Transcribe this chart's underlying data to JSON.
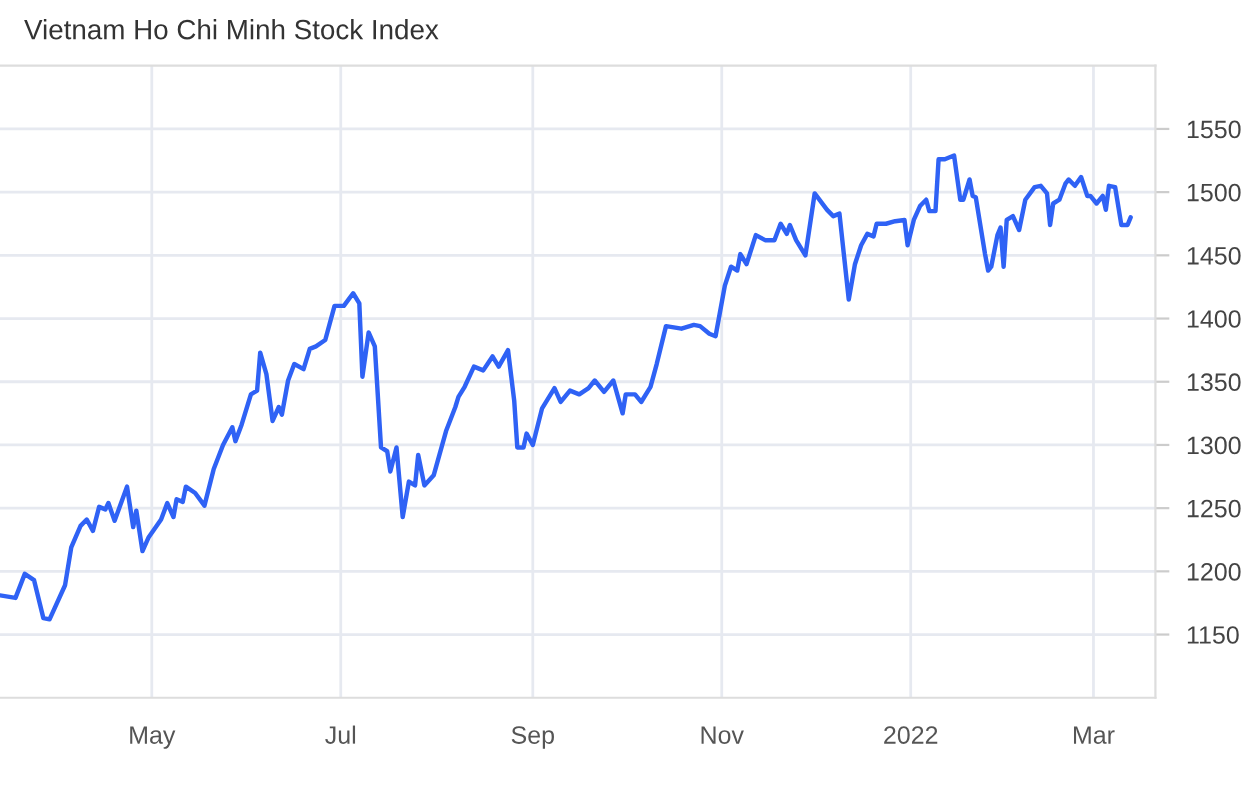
{
  "chart_data": {
    "type": "line",
    "title": "Vietnam Ho Chi Minh Stock Index",
    "x": [
      "2021-03-13",
      "2021-03-18",
      "2021-03-21",
      "2021-03-24",
      "2021-03-27",
      "2021-03-29",
      "2021-04-03",
      "2021-04-05",
      "2021-04-08",
      "2021-04-10",
      "2021-04-12",
      "2021-04-14",
      "2021-04-16",
      "2021-04-17",
      "2021-04-19",
      "2021-04-23",
      "2021-04-25",
      "2021-04-26",
      "2021-04-28",
      "2021-04-30",
      "2021-05-04",
      "2021-05-06",
      "2021-05-08",
      "2021-05-09",
      "2021-05-11",
      "2021-05-12",
      "2021-05-15",
      "2021-05-18",
      "2021-05-21",
      "2021-05-24",
      "2021-05-27",
      "2021-05-28",
      "2021-05-30",
      "2021-06-02",
      "2021-06-04",
      "2021-06-05",
      "2021-06-07",
      "2021-06-09",
      "2021-06-11",
      "2021-06-12",
      "2021-06-14",
      "2021-06-16",
      "2021-06-19",
      "2021-06-21",
      "2021-06-23",
      "2021-06-26",
      "2021-06-29",
      "2021-07-02",
      "2021-07-05",
      "2021-07-07",
      "2021-07-08",
      "2021-07-10",
      "2021-07-12",
      "2021-07-14",
      "2021-07-16",
      "2021-07-17",
      "2021-07-19",
      "2021-07-21",
      "2021-07-23",
      "2021-07-25",
      "2021-07-26",
      "2021-07-28",
      "2021-07-31",
      "2021-08-04",
      "2021-08-07",
      "2021-08-08",
      "2021-08-10",
      "2021-08-13",
      "2021-08-16",
      "2021-08-19",
      "2021-08-21",
      "2021-08-24",
      "2021-08-26",
      "2021-08-27",
      "2021-08-29",
      "2021-08-30",
      "2021-09-01",
      "2021-09-04",
      "2021-09-08",
      "2021-09-10",
      "2021-09-13",
      "2021-09-16",
      "2021-09-19",
      "2021-09-21",
      "2021-09-24",
      "2021-09-27",
      "2021-09-30",
      "2021-10-01",
      "2021-10-04",
      "2021-10-06",
      "2021-10-09",
      "2021-10-11",
      "2021-10-14",
      "2021-10-19",
      "2021-10-23",
      "2021-10-25",
      "2021-10-28",
      "2021-10-30",
      "2021-11-02",
      "2021-11-04",
      "2021-11-06",
      "2021-11-07",
      "2021-11-09",
      "2021-11-12",
      "2021-11-15",
      "2021-11-18",
      "2021-11-20",
      "2021-11-22",
      "2021-11-23",
      "2021-11-25",
      "2021-11-28",
      "2021-12-01",
      "2021-12-05",
      "2021-12-07",
      "2021-12-09",
      "2021-12-12",
      "2021-12-14",
      "2021-12-16",
      "2021-12-18",
      "2021-12-20",
      "2021-12-21",
      "2021-12-24",
      "2021-12-27",
      "2021-12-30",
      "2021-12-31",
      "2022-01-02",
      "2022-01-04",
      "2022-01-06",
      "2022-01-07",
      "2022-01-09",
      "2022-01-10",
      "2022-01-12",
      "2022-01-15",
      "2022-01-17",
      "2022-01-18",
      "2022-01-20",
      "2022-01-21",
      "2022-01-22",
      "2022-01-25",
      "2022-01-26",
      "2022-01-27",
      "2022-01-29",
      "2022-01-30",
      "2022-01-31",
      "2022-02-01",
      "2022-02-03",
      "2022-02-05",
      "2022-02-07",
      "2022-02-10",
      "2022-02-12",
      "2022-02-14",
      "2022-02-15",
      "2022-02-16",
      "2022-02-18",
      "2022-02-20",
      "2022-02-21",
      "2022-02-23",
      "2022-02-25",
      "2022-02-27",
      "2022-02-28",
      "2022-03-02",
      "2022-03-04",
      "2022-03-05",
      "2022-03-06",
      "2022-03-08",
      "2022-03-10",
      "2022-03-12",
      "2022-03-13"
    ],
    "series": [
      {
        "color": "#2f62f5",
        "values": [
          1181,
          1179,
          1198,
          1193,
          1163,
          1162,
          1189,
          1219,
          1236,
          1241,
          1232,
          1251,
          1249,
          1254,
          1240,
          1267,
          1235,
          1248,
          1216,
          1227,
          1241,
          1254,
          1243,
          1257,
          1255,
          1267,
          1262,
          1252,
          1281,
          1300,
          1314,
          1303,
          1316,
          1340,
          1343,
          1373,
          1356,
          1319,
          1330,
          1324,
          1351,
          1364,
          1360,
          1376,
          1378,
          1383,
          1410,
          1410,
          1420,
          1412,
          1354,
          1389,
          1378,
          1298,
          1295,
          1279,
          1298,
          1243,
          1271,
          1268,
          1292,
          1268,
          1276,
          1311,
          1330,
          1338,
          1346,
          1362,
          1359,
          1370,
          1362,
          1375,
          1335,
          1298,
          1298,
          1309,
          1300,
          1329,
          1345,
          1334,
          1343,
          1340,
          1345,
          1351,
          1342,
          1351,
          1325,
          1340,
          1340,
          1334,
          1346,
          1364,
          1394,
          1392,
          1395,
          1394,
          1388,
          1386,
          1426,
          1441,
          1438,
          1451,
          1443,
          1466,
          1462,
          1462,
          1475,
          1467,
          1474,
          1462,
          1450,
          1499,
          1486,
          1481,
          1483,
          1415,
          1443,
          1458,
          1467,
          1465,
          1475,
          1475,
          1477,
          1478,
          1458,
          1478,
          1489,
          1494,
          1485,
          1485,
          1526,
          1526,
          1529,
          1494,
          1494,
          1510,
          1497,
          1496,
          1451,
          1438,
          1441,
          1466,
          1472,
          1441,
          1478,
          1481,
          1470,
          1494,
          1504,
          1505,
          1499,
          1474,
          1491,
          1494,
          1507,
          1510,
          1505,
          1512,
          1497,
          1497,
          1491,
          1497,
          1486,
          1505,
          1504,
          1474,
          1474,
          1480
        ]
      }
    ],
    "xlim": [
      "2021-03-13",
      "2022-03-21"
    ],
    "xticks": [
      {
        "value": "2021-05-01",
        "label": "May"
      },
      {
        "value": "2021-07-01",
        "label": "Jul"
      },
      {
        "value": "2021-09-01",
        "label": "Sep"
      },
      {
        "value": "2021-11-01",
        "label": "Nov"
      },
      {
        "value": "2022-01-01",
        "label": "2022"
      },
      {
        "value": "2022-03-01",
        "label": "Mar"
      }
    ],
    "ylim": [
      1100,
      1600
    ],
    "yticks": [
      1150,
      1200,
      1250,
      1300,
      1350,
      1400,
      1450,
      1500,
      1550
    ],
    "grid": true
  }
}
